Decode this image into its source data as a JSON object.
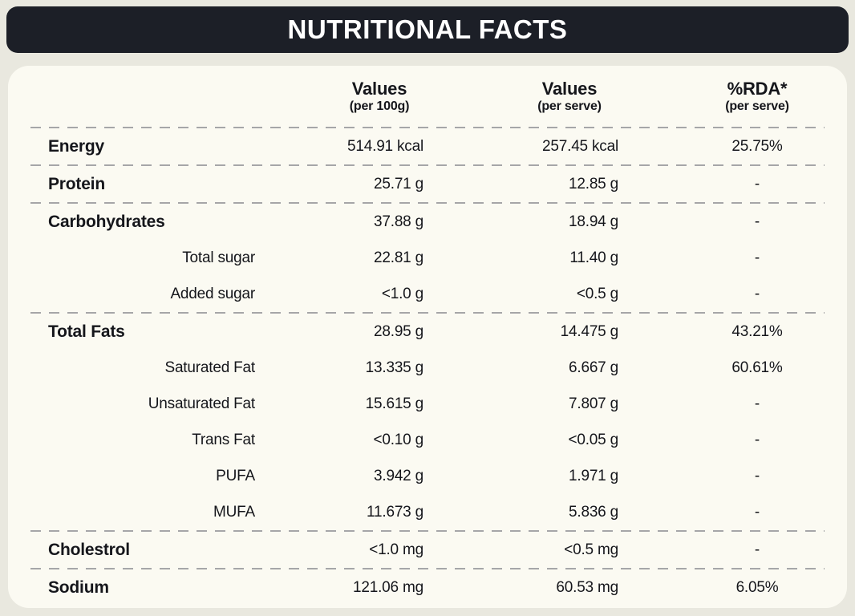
{
  "title": "NUTRITIONAL FACTS",
  "columns": {
    "per_100g": {
      "label": "Values",
      "sub": "(per 100g)"
    },
    "per_serve": {
      "label": "Values",
      "sub": "(per serve)"
    },
    "rda": {
      "label": "%RDA*",
      "sub": "(per serve)"
    }
  },
  "rows": [
    {
      "name": "Energy",
      "per_100g": "514.91 kcal",
      "per_serve": "257.45 kcal",
      "rda": "25.75%"
    },
    {
      "name": "Protein",
      "per_100g": "25.71 g",
      "per_serve": "12.85 g",
      "rda": "-"
    },
    {
      "name": "Carbohydrates",
      "per_100g": "37.88 g",
      "per_serve": "18.94 g",
      "rda": "-"
    },
    {
      "name": "Total sugar",
      "per_100g": "22.81 g",
      "per_serve": "11.40 g",
      "rda": "-"
    },
    {
      "name": "Added sugar",
      "per_100g": "<1.0 g",
      "per_serve": "<0.5 g",
      "rda": "-"
    },
    {
      "name": "Total Fats",
      "per_100g": "28.95 g",
      "per_serve": "14.475 g",
      "rda": "43.21%"
    },
    {
      "name": "Saturated Fat",
      "per_100g": "13.335 g",
      "per_serve": "6.667 g",
      "rda": "60.61%"
    },
    {
      "name": "Unsaturated Fat",
      "per_100g": "15.615 g",
      "per_serve": "7.807 g",
      "rda": "-"
    },
    {
      "name": "Trans Fat",
      "per_100g": "<0.10 g",
      "per_serve": "<0.05 g",
      "rda": "-"
    },
    {
      "name": "PUFA",
      "per_100g": "3.942 g",
      "per_serve": "1.971 g",
      "rda": "-"
    },
    {
      "name": "MUFA",
      "per_100g": "11.673 g",
      "per_serve": "5.836 g",
      "rda": "-"
    },
    {
      "name": "Cholestrol",
      "per_100g": "<1.0 mg",
      "per_serve": "<0.5 mg",
      "rda": "-"
    },
    {
      "name": "Sodium",
      "per_100g": "121.06 mg",
      "per_serve": "60.53 mg",
      "rda": "6.05%"
    }
  ],
  "colors": {
    "page_bg": "#e9e8df",
    "card_bg": "#fbfaf2",
    "title_bar_bg": "#1c1f27",
    "title_text": "#ffffff",
    "body_text": "#15161b",
    "divider": "#a6a6a8"
  }
}
